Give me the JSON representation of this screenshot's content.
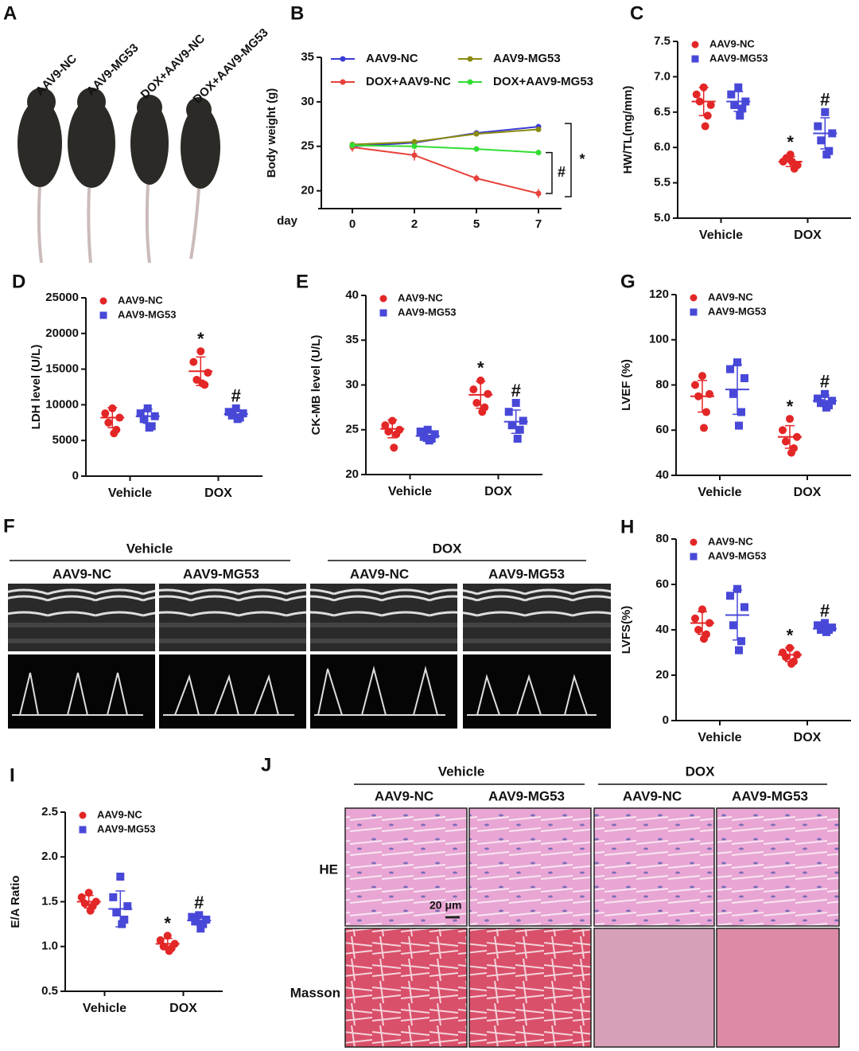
{
  "chart_data": [
    {
      "type": "line",
      "panel": "B",
      "ylabel": "Body weight (g)",
      "x_label": "day",
      "categories": [
        "0",
        "2",
        "5",
        "7"
      ],
      "ylim": [
        18,
        35
      ],
      "yticks": [
        20,
        25,
        30,
        35
      ],
      "series": [
        {
          "name": "AAV9-NC",
          "color": "#3a3ad6",
          "values": [
            25.0,
            25.4,
            26.5,
            27.2
          ],
          "errors": [
            0.3,
            0.2,
            0.2,
            0.2
          ]
        },
        {
          "name": "AAV9-MG53",
          "color": "#8a8a10",
          "values": [
            25.2,
            25.5,
            26.4,
            26.9
          ],
          "errors": [
            0.3,
            0.2,
            0.2,
            0.2
          ]
        },
        {
          "name": "DOX+AAV9-NC",
          "color": "#e8403a",
          "values": [
            24.9,
            24.0,
            21.4,
            19.7
          ],
          "errors": [
            0.5,
            0.6,
            0.4,
            0.5
          ]
        },
        {
          "name": "DOX+AAV9-MG53",
          "color": "#33dd33",
          "values": [
            25.1,
            25.0,
            24.7,
            24.3
          ],
          "errors": [
            0.3,
            0.2,
            0.3,
            0.3
          ]
        }
      ],
      "brackets": [
        "#",
        "*"
      ]
    },
    {
      "type": "strip",
      "panel": "C",
      "ylabel": "HW/TL(mg/mm)",
      "categories": [
        "Vehicle",
        "DOX"
      ],
      "ylim": [
        5,
        7.5
      ],
      "yticks": [
        {
          "value": 5,
          "label": "5.0"
        },
        5.5,
        {
          "value": 6,
          "label": "6.0"
        },
        6.5,
        {
          "value": 7,
          "label": "7.0"
        },
        7.5
      ],
      "series": [
        {
          "name": "AAV9-NC",
          "color": "#e32626",
          "values": [
            [
              6.85,
              6.75,
              6.6,
              6.65,
              6.45,
              6.3
            ],
            [
              5.9,
              5.8,
              5.75,
              5.85,
              5.7,
              5.8
            ]
          ],
          "mean": [
            6.65,
            5.8
          ],
          "sd": [
            0.2,
            0.07
          ],
          "significance": [
            null,
            "*"
          ]
        },
        {
          "name": "AAV9-MG53",
          "color": "#4848d8",
          "values": [
            [
              6.85,
              6.75,
              6.65,
              6.6,
              6.55,
              6.45
            ],
            [
              6.5,
              6.3,
              6.2,
              6.1,
              5.95,
              5.9
            ]
          ],
          "mean": [
            6.65,
            6.2
          ],
          "sd": [
            0.14,
            0.22
          ],
          "significance": [
            null,
            "#"
          ]
        }
      ]
    },
    {
      "type": "strip",
      "panel": "D",
      "ylabel": "LDH level (U/L)",
      "categories": [
        "Vehicle",
        "DOX"
      ],
      "ylim": [
        0,
        25000
      ],
      "yticks": [
        0,
        5000,
        10000,
        15000,
        20000,
        25000
      ],
      "series": [
        {
          "name": "AAV9-NC",
          "color": "#e32626",
          "values": [
            [
              9500,
              8800,
              8200,
              7500,
              6500,
              6000
            ],
            [
              17500,
              16000,
              14500,
              13500,
              12800,
              13000
            ]
          ],
          "mean": [
            8200,
            14700
          ],
          "sd": [
            1400,
            2000
          ],
          "significance": [
            null,
            "*"
          ]
        },
        {
          "name": "AAV9-MG53",
          "color": "#4848d8",
          "values": [
            [
              9500,
              8800,
              8400,
              8000,
              7000,
              6800
            ],
            [
              9500,
              9000,
              8800,
              8500,
              8200,
              8000
            ]
          ],
          "mean": [
            8400,
            8700
          ],
          "sd": [
            1000,
            600
          ],
          "significance": [
            null,
            "#"
          ]
        }
      ]
    },
    {
      "type": "strip",
      "panel": "E",
      "ylabel": "CK-MB level (U/L)",
      "categories": [
        "Vehicle",
        "DOX"
      ],
      "ylim": [
        20,
        40
      ],
      "yticks": [
        20,
        25,
        30,
        35,
        40
      ],
      "series": [
        {
          "name": "AAV9-NC",
          "color": "#e32626",
          "values": [
            [
              26.0,
              25.5,
              25.0,
              24.8,
              24.5,
              23.0
            ],
            [
              30.5,
              29.5,
              29.0,
              28.0,
              27.5,
              27.0
            ]
          ],
          "mean": [
            25.1,
            28.9
          ],
          "sd": [
            1.0,
            1.5
          ],
          "significance": [
            null,
            "*"
          ]
        },
        {
          "name": "AAV9-MG53",
          "color": "#4848d8",
          "values": [
            [
              25.0,
              24.8,
              24.5,
              24.2,
              24.0,
              23.8
            ],
            [
              28.0,
              27.0,
              26.0,
              25.5,
              25.0,
              24.0
            ]
          ],
          "mean": [
            24.3,
            25.9
          ],
          "sd": [
            0.6,
            1.3
          ],
          "significance": [
            null,
            "#"
          ]
        }
      ]
    },
    {
      "type": "strip",
      "panel": "G",
      "ylabel": "LVEF (%)",
      "categories": [
        "Vehicle",
        "DOX"
      ],
      "ylim": [
        40,
        120
      ],
      "yticks": [
        40,
        60,
        80,
        100,
        120
      ],
      "series": [
        {
          "name": "AAV9-NC",
          "color": "#e32626",
          "values": [
            [
              84,
              80,
              76,
              75,
              68,
              61
            ],
            [
              65,
              60,
              57,
              55,
              52,
              50
            ]
          ],
          "mean": [
            75,
            57
          ],
          "sd": [
            7,
            5
          ],
          "significance": [
            null,
            "*"
          ]
        },
        {
          "name": "AAV9-MG53",
          "color": "#4848d8",
          "values": [
            [
              90,
              87,
              83,
              76,
              68,
              62
            ],
            [
              76,
              74,
              73,
              72,
              71,
              70
            ]
          ],
          "mean": [
            78,
            73
          ],
          "sd": [
            11,
            2.5
          ],
          "significance": [
            null,
            "#"
          ]
        }
      ]
    },
    {
      "type": "strip",
      "panel": "H",
      "ylabel": "LVFS(%)",
      "categories": [
        "Vehicle",
        "DOX"
      ],
      "ylim": [
        0,
        80
      ],
      "yticks": [
        0,
        20,
        40,
        60,
        80
      ],
      "series": [
        {
          "name": "AAV9-NC",
          "color": "#e32626",
          "values": [
            [
              49,
              45,
              43,
              40,
              38,
              36
            ],
            [
              32,
              30,
              29,
              28,
              26,
              25
            ]
          ],
          "mean": [
            43,
            29
          ],
          "sd": [
            5,
            3
          ],
          "significance": [
            null,
            "*"
          ]
        },
        {
          "name": "AAV9-MG53",
          "color": "#4848d8",
          "values": [
            [
              58,
              55,
              50,
              42,
              35,
              31
            ],
            [
              43,
              42,
              41,
              40,
              40,
              39
            ]
          ],
          "mean": [
            46.5,
            40.5
          ],
          "sd": [
            11,
            2
          ],
          "significance": [
            null,
            "#"
          ]
        }
      ]
    },
    {
      "type": "strip",
      "panel": "I",
      "ylabel": "E/A Ratio",
      "categories": [
        "Vehicle",
        "DOX"
      ],
      "ylim": [
        0.5,
        2.5
      ],
      "yticks": [
        0.5,
        {
          "value": 1,
          "label": "1.0"
        },
        1.5,
        {
          "value": 2,
          "label": "2.0"
        },
        2.5
      ],
      "series": [
        {
          "name": "AAV9-NC",
          "color": "#e32626",
          "values": [
            [
              1.6,
              1.55,
              1.5,
              1.48,
              1.45,
              1.4
            ],
            [
              1.12,
              1.07,
              1.03,
              1.0,
              0.98,
              0.95
            ]
          ],
          "mean": [
            1.5,
            1.03
          ],
          "sd": [
            0.07,
            0.06
          ],
          "significance": [
            null,
            "*"
          ]
        },
        {
          "name": "AAV9-MG53",
          "color": "#4848d8",
          "values": [
            [
              1.78,
              1.55,
              1.45,
              1.38,
              1.3,
              1.25
            ],
            [
              1.35,
              1.33,
              1.3,
              1.28,
              1.25,
              1.2
            ]
          ],
          "mean": [
            1.42,
            1.29
          ],
          "sd": [
            0.2,
            0.05
          ],
          "significance": [
            null,
            "#"
          ]
        }
      ]
    }
  ],
  "figure": {
    "A": {
      "panel": "A",
      "labels": [
        "AAV9-NC",
        "AAV9-MG53",
        "DOX+AAV9-NC",
        "DOX+AAV9-MG53"
      ]
    },
    "F": {
      "panel": "F",
      "groups": [
        "Vehicle",
        "DOX"
      ],
      "columns": [
        "AAV9-NC",
        "AAV9-MG53",
        "AAV9-NC",
        "AAV9-MG53"
      ]
    },
    "J": {
      "panel": "J",
      "groups": [
        "Vehicle",
        "DOX"
      ],
      "columns": [
        "AAV9-NC",
        "AAV9-MG53",
        "AAV9-NC",
        "AAV9-MG53"
      ],
      "rows": [
        "HE",
        "Masson"
      ],
      "scale_bar": "20 μm"
    }
  }
}
